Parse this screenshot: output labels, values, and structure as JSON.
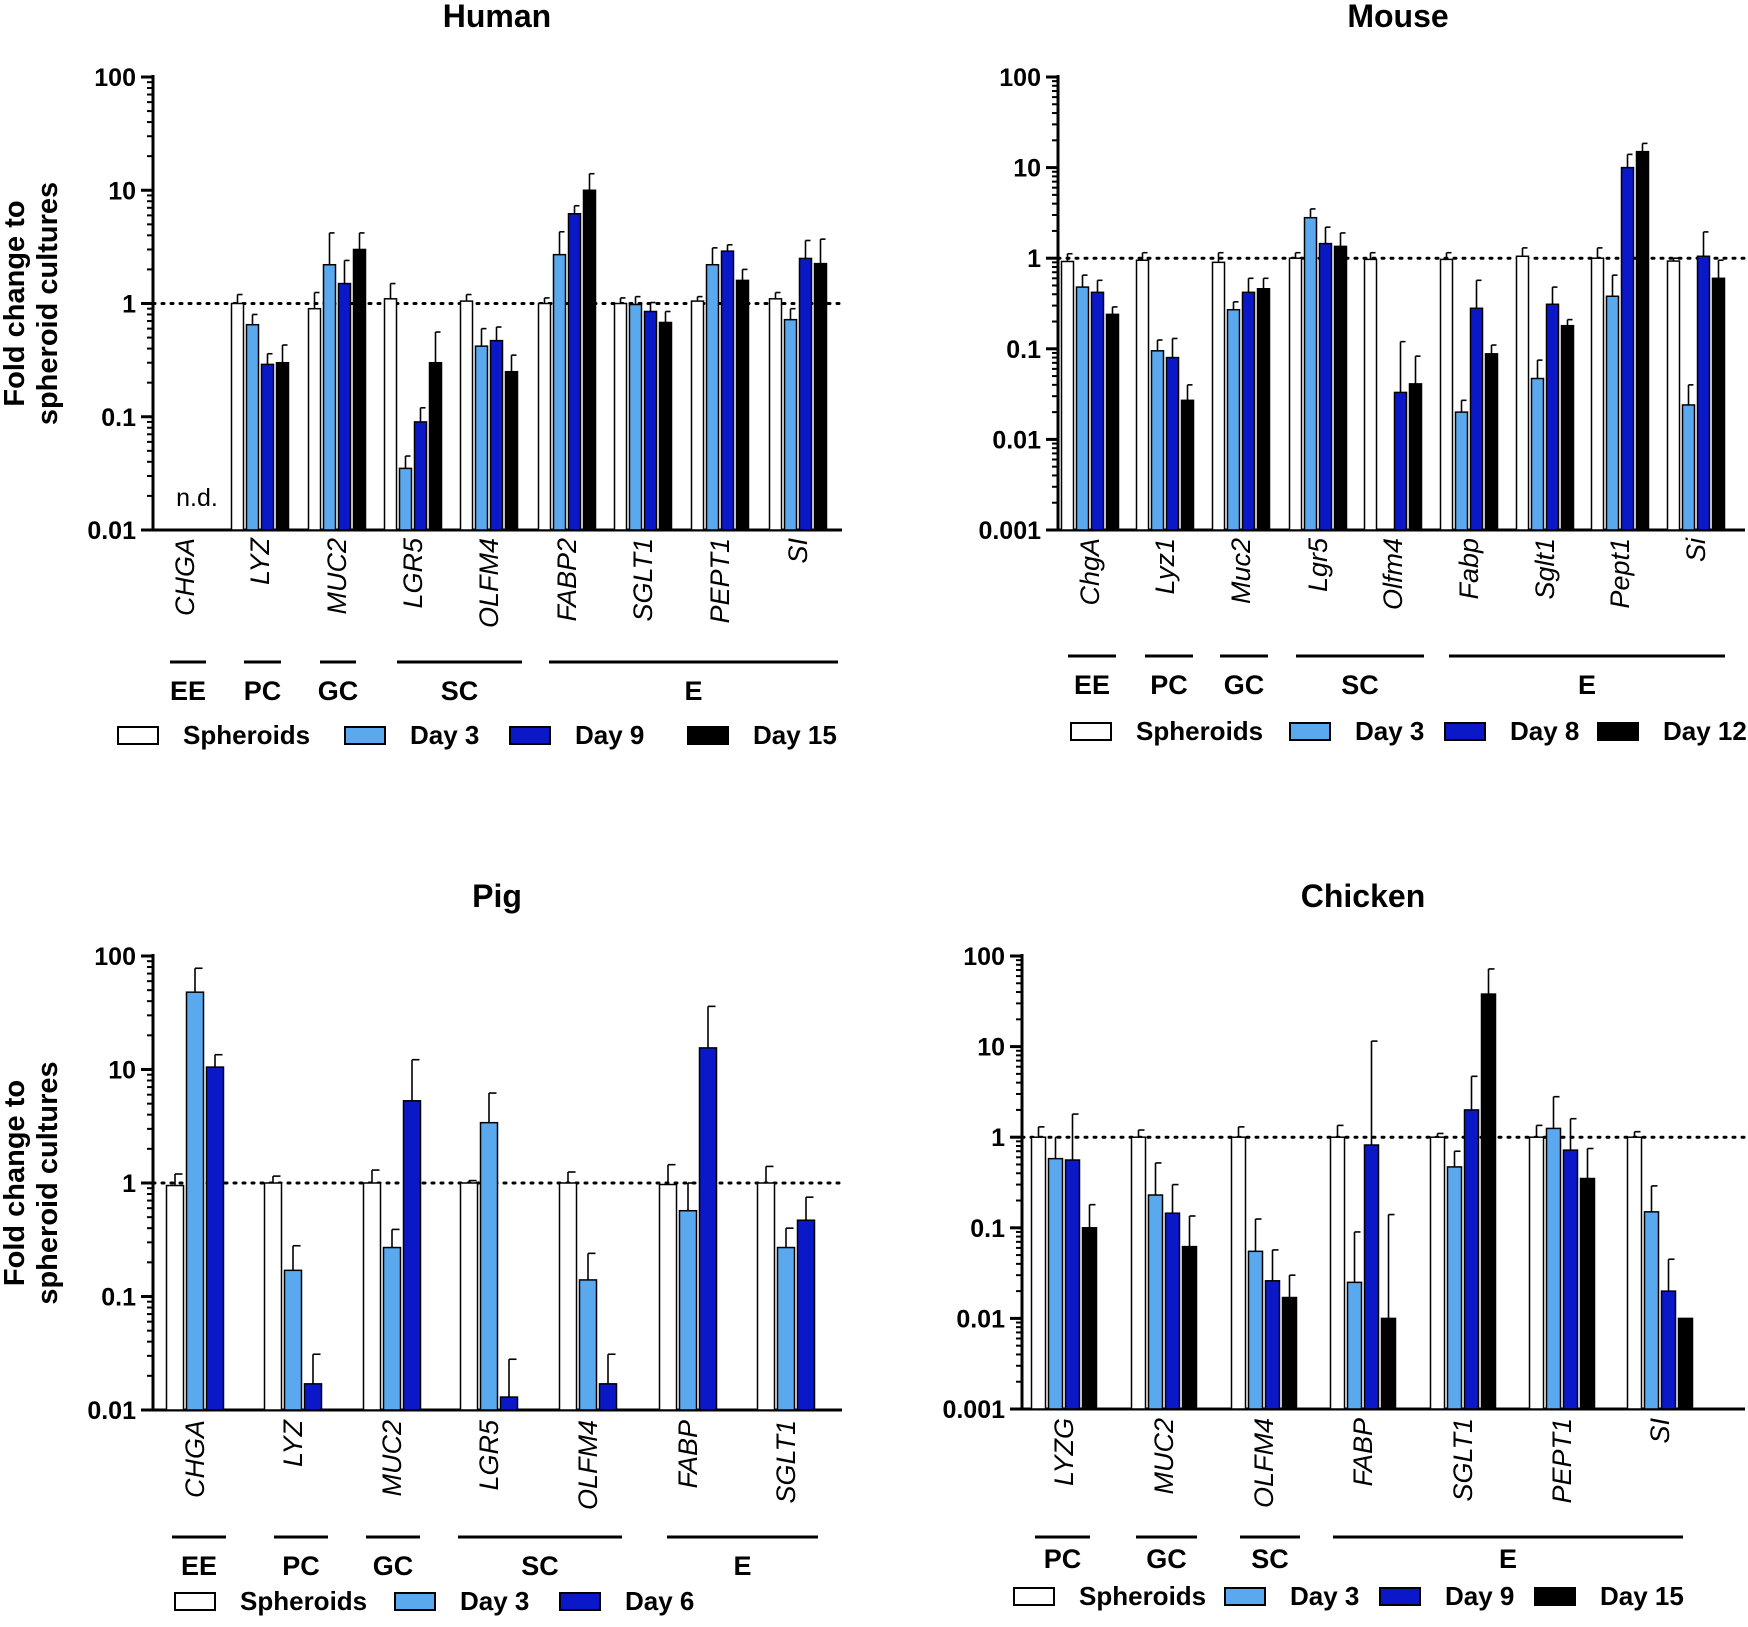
{
  "figure": {
    "y_axis_label_line1": "Fold change to",
    "y_axis_label_line2": "spheroid cultures"
  },
  "colors": {
    "spheroids": "#ffffff",
    "day3": "#5aa9ee",
    "day_mid": "#0a18c8",
    "day_late": "#000000",
    "axis": "#000000",
    "reference_line": "#000000"
  },
  "chart_data": [
    {
      "id": "human",
      "type": "bar",
      "title": "Human",
      "yscale": "log",
      "ylim": [
        0.01,
        100
      ],
      "yticks": [
        0.01,
        0.1,
        1,
        10,
        100
      ],
      "ytick_labels": [
        "0.01",
        "0.1",
        "1",
        "10",
        "100"
      ],
      "reference_line": 1,
      "categories": [
        "CHGA",
        "LYZ",
        "MUC2",
        "LGR5",
        "OLFM4",
        "FABP2",
        "SGLT1",
        "PEPT1",
        "SI"
      ],
      "annotation": {
        "category_index": 0,
        "text": "n.d."
      },
      "series": [
        {
          "name": "Spheroids",
          "color_key": "spheroids",
          "values": [
            null,
            1.0,
            0.9,
            1.1,
            1.05,
            1.0,
            1.0,
            1.05,
            1.1
          ],
          "errors": [
            null,
            1.2,
            1.25,
            1.5,
            1.2,
            1.12,
            1.12,
            1.15,
            1.25
          ]
        },
        {
          "name": "Day 3",
          "color_key": "day3",
          "values": [
            null,
            0.65,
            2.2,
            0.035,
            0.42,
            2.7,
            0.98,
            2.2,
            0.72
          ],
          "errors": [
            null,
            0.8,
            4.2,
            0.045,
            0.6,
            4.3,
            1.15,
            3.1,
            0.9
          ]
        },
        {
          "name": "Day 9",
          "color_key": "day_mid",
          "values": [
            null,
            0.29,
            1.5,
            0.09,
            0.47,
            6.2,
            0.85,
            2.9,
            2.5
          ],
          "errors": [
            null,
            0.36,
            2.4,
            0.12,
            0.62,
            7.3,
            1.02,
            3.3,
            3.6
          ]
        },
        {
          "name": "Day 15",
          "color_key": "day_late",
          "values": [
            null,
            0.3,
            3.0,
            0.3,
            0.25,
            10.0,
            0.68,
            1.6,
            2.25
          ],
          "errors": [
            null,
            0.43,
            4.2,
            0.56,
            0.35,
            14.0,
            0.85,
            2.0,
            3.7
          ]
        }
      ],
      "groups": [
        {
          "label": "EE",
          "from": 0,
          "to": 0
        },
        {
          "label": "PC",
          "from": 1,
          "to": 1
        },
        {
          "label": "GC",
          "from": 2,
          "to": 2
        },
        {
          "label": "SC",
          "from": 3,
          "to": 4
        },
        {
          "label": "E",
          "from": 5,
          "to": 8
        }
      ]
    },
    {
      "id": "mouse",
      "type": "bar",
      "title": "Mouse",
      "yscale": "log",
      "ylim": [
        0.001,
        100
      ],
      "yticks": [
        0.001,
        0.01,
        0.1,
        1,
        10,
        100
      ],
      "ytick_labels": [
        "0.001",
        "0.01",
        "0.1",
        "1",
        "10",
        "100"
      ],
      "reference_line": 1,
      "categories": [
        "ChgA",
        "Lyz1",
        "Muc2",
        "Lgr5",
        "Olfm4",
        "Fabp",
        "Sglt1",
        "Pept1",
        "Si"
      ],
      "series": [
        {
          "name": "Spheroids",
          "color_key": "spheroids",
          "values": [
            0.92,
            0.95,
            0.9,
            1.0,
            0.97,
            0.97,
            1.05,
            1.0,
            0.93
          ],
          "errors": [
            1.12,
            1.15,
            1.15,
            1.15,
            1.15,
            1.15,
            1.3,
            1.3,
            1.0
          ]
        },
        {
          "name": "Day 3",
          "color_key": "day3",
          "values": [
            0.48,
            0.095,
            0.27,
            2.8,
            null,
            0.02,
            0.047,
            0.38,
            0.024
          ],
          "errors": [
            0.65,
            0.125,
            0.33,
            3.5,
            null,
            0.027,
            0.075,
            0.65,
            0.04
          ]
        },
        {
          "name": "Day 8",
          "color_key": "day_mid",
          "values": [
            0.42,
            0.08,
            0.42,
            1.45,
            0.033,
            0.28,
            0.31,
            10.0,
            1.05
          ],
          "errors": [
            0.57,
            0.13,
            0.6,
            2.2,
            0.12,
            0.57,
            0.48,
            14.0,
            1.95
          ]
        },
        {
          "name": "Day 12",
          "color_key": "day_late",
          "values": [
            0.24,
            0.027,
            0.46,
            1.35,
            0.041,
            0.088,
            0.18,
            15.0,
            0.6
          ],
          "errors": [
            0.29,
            0.04,
            0.6,
            1.9,
            0.083,
            0.11,
            0.21,
            18.5,
            0.95
          ]
        }
      ],
      "groups": [
        {
          "label": "EE",
          "from": 0,
          "to": 0
        },
        {
          "label": "PC",
          "from": 1,
          "to": 1
        },
        {
          "label": "GC",
          "from": 2,
          "to": 2
        },
        {
          "label": "SC",
          "from": 3,
          "to": 4
        },
        {
          "label": "E",
          "from": 5,
          "to": 8
        }
      ]
    },
    {
      "id": "pig",
      "type": "bar",
      "title": "Pig",
      "yscale": "log",
      "ylim": [
        0.01,
        100
      ],
      "yticks": [
        0.01,
        0.1,
        1,
        10,
        100
      ],
      "ytick_labels": [
        "0.01",
        "0.1",
        "1",
        "10",
        "100"
      ],
      "reference_line": 1,
      "categories": [
        "CHGA",
        "LYZ",
        "MUC2",
        "LGR5",
        "OLFM4",
        "FABP",
        "SGLT1"
      ],
      "series": [
        {
          "name": "Spheroids",
          "color_key": "spheroids",
          "values": [
            0.95,
            1.0,
            1.0,
            1.0,
            1.0,
            0.97,
            1.0
          ],
          "errors": [
            1.2,
            1.15,
            1.3,
            1.05,
            1.25,
            1.45,
            1.4
          ]
        },
        {
          "name": "Day 3",
          "color_key": "day3",
          "values": [
            48,
            0.17,
            0.27,
            3.4,
            0.14,
            0.57,
            0.27
          ],
          "errors": [
            78,
            0.28,
            0.39,
            6.2,
            0.24,
            1.0,
            0.4
          ]
        },
        {
          "name": "Day 6",
          "color_key": "day_mid",
          "values": [
            10.5,
            0.017,
            5.3,
            0.013,
            0.017,
            15.5,
            0.47
          ],
          "errors": [
            13.5,
            0.031,
            12.2,
            0.028,
            0.031,
            36,
            0.75
          ]
        }
      ],
      "groups": [
        {
          "label": "EE",
          "from": 0,
          "to": 0
        },
        {
          "label": "PC",
          "from": 1,
          "to": 1
        },
        {
          "label": "GC",
          "from": 2,
          "to": 2
        },
        {
          "label": "SC",
          "from": 3,
          "to": 4
        },
        {
          "label": "E",
          "from": 5,
          "to": 6
        }
      ]
    },
    {
      "id": "chicken",
      "type": "bar",
      "title": "Chicken",
      "yscale": "log",
      "ylim": [
        0.001,
        100
      ],
      "yticks": [
        0.001,
        0.01,
        0.1,
        1,
        10,
        100
      ],
      "ytick_labels": [
        "0.001",
        "0.01",
        "0.1",
        "1",
        "10",
        "100"
      ],
      "reference_line": 1,
      "categories": [
        "LYZG",
        "MUC2",
        "OLFM4",
        "FABP",
        "SGLT1",
        "PEPT1",
        "SI"
      ],
      "series": [
        {
          "name": "Spheroids",
          "color_key": "spheroids",
          "values": [
            1.0,
            1.0,
            1.0,
            1.0,
            1.0,
            1.0,
            1.0
          ],
          "errors": [
            1.3,
            1.2,
            1.3,
            1.35,
            1.1,
            1.35,
            1.15
          ]
        },
        {
          "name": "Day 3",
          "color_key": "day3",
          "values": [
            0.58,
            0.23,
            0.055,
            0.025,
            0.47,
            1.25,
            0.15
          ],
          "errors": [
            1.0,
            0.52,
            0.125,
            0.09,
            0.7,
            2.8,
            0.29
          ]
        },
        {
          "name": "Day 9",
          "color_key": "day_mid",
          "values": [
            0.56,
            0.145,
            0.026,
            0.82,
            2.0,
            0.72,
            0.02
          ],
          "errors": [
            1.8,
            0.3,
            0.057,
            11.5,
            4.7,
            1.6,
            0.045
          ]
        },
        {
          "name": "Day 15",
          "color_key": "day_late",
          "values": [
            0.1,
            0.062,
            0.017,
            0.01,
            38,
            0.35,
            0.01
          ],
          "errors": [
            0.18,
            0.135,
            0.03,
            0.14,
            72,
            0.75,
            null
          ]
        }
      ],
      "groups": [
        {
          "label": "PC",
          "from": 0,
          "to": 0
        },
        {
          "label": "GC",
          "from": 1,
          "to": 1
        },
        {
          "label": "SC",
          "from": 2,
          "to": 2
        },
        {
          "label": "E",
          "from": 3,
          "to": 6
        }
      ]
    }
  ]
}
